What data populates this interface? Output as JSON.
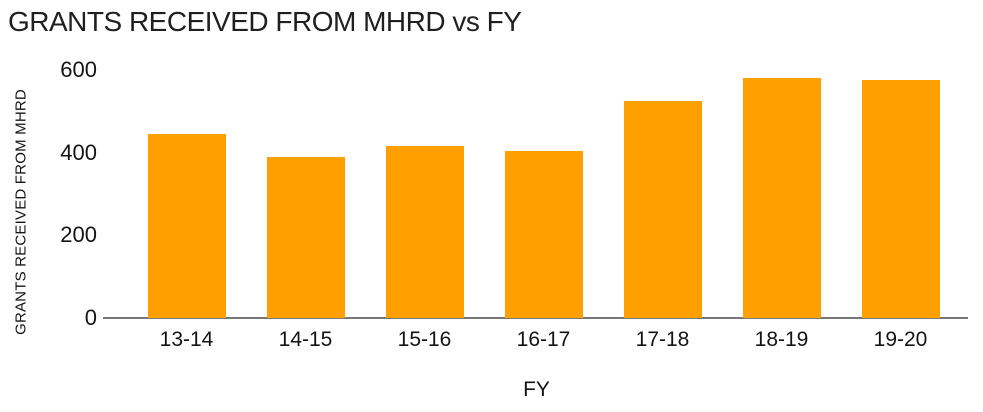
{
  "chart_data": {
    "type": "bar",
    "title": "GRANTS RECEIVED FROM MHRD vs FY",
    "xlabel": "FY",
    "ylabel": "GRANTS RECEIVED FROM MHRD",
    "categories": [
      "13-14",
      "14-15",
      "15-16",
      "16-17",
      "17-18",
      "18-19",
      "19-20"
    ],
    "values": [
      445,
      390,
      415,
      405,
      525,
      580,
      575
    ],
    "ylim": [
      0,
      600
    ],
    "yticks": [
      0,
      200,
      400,
      600
    ],
    "grid": false,
    "legend": "none",
    "colors": {
      "bar": "#FFA000",
      "axis_line": "#777777",
      "text": "#141414",
      "title": "#1f1f1f"
    }
  }
}
